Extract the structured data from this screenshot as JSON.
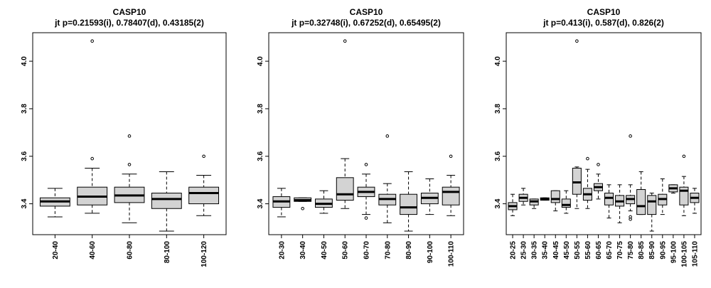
{
  "chart_data": [
    {
      "type": "box",
      "title": "CASP10",
      "subtitle": "jt p=0.21593(i), 0.78407(d), 0.43185(2)",
      "ylim": [
        3.27,
        4.12
      ],
      "yticks": [
        "3.4",
        "3.6",
        "3.8",
        "4.0"
      ],
      "categories": [
        "20-40",
        "40-60",
        "60-80",
        "80-100",
        "100-120"
      ],
      "boxes": [
        {
          "min": 3.345,
          "q1": 3.39,
          "median": 3.41,
          "q3": 3.425,
          "max": 3.465,
          "outliers": []
        },
        {
          "min": 3.36,
          "q1": 3.395,
          "median": 3.43,
          "q3": 3.47,
          "max": 3.55,
          "outliers": [
            3.59,
            4.085
          ]
        },
        {
          "min": 3.32,
          "q1": 3.405,
          "median": 3.435,
          "q3": 3.47,
          "max": 3.525,
          "outliers": [
            3.565,
            3.685
          ]
        },
        {
          "min": 3.285,
          "q1": 3.38,
          "median": 3.42,
          "q3": 3.445,
          "max": 3.535,
          "outliers": []
        },
        {
          "min": 3.35,
          "q1": 3.4,
          "median": 3.445,
          "q3": 3.47,
          "max": 3.52,
          "outliers": [
            3.6
          ]
        }
      ]
    },
    {
      "type": "box",
      "title": "CASP10",
      "subtitle": "jt p=0.32748(i), 0.67252(d), 0.65495(2)",
      "ylim": [
        3.27,
        4.12
      ],
      "yticks": [
        "3.4",
        "3.6",
        "3.8",
        "4.0"
      ],
      "categories": [
        "20-30",
        "30-40",
        "40-50",
        "50-60",
        "60-70",
        "70-80",
        "80-90",
        "90-100",
        "100-110"
      ],
      "boxes": [
        {
          "min": 3.345,
          "q1": 3.385,
          "median": 3.41,
          "q3": 3.43,
          "max": 3.465,
          "outliers": []
        },
        {
          "min": 3.41,
          "q1": 3.41,
          "median": 3.415,
          "q3": 3.425,
          "max": 3.425,
          "outliers": [
            3.38
          ]
        },
        {
          "min": 3.36,
          "q1": 3.385,
          "median": 3.4,
          "q3": 3.42,
          "max": 3.455,
          "outliers": []
        },
        {
          "min": 3.38,
          "q1": 3.415,
          "median": 3.44,
          "q3": 3.51,
          "max": 3.59,
          "outliers": [
            4.085
          ]
        },
        {
          "min": 3.355,
          "q1": 3.43,
          "median": 3.45,
          "q3": 3.47,
          "max": 3.525,
          "outliers": [
            3.34,
            3.565
          ]
        },
        {
          "min": 3.32,
          "q1": 3.395,
          "median": 3.42,
          "q3": 3.44,
          "max": 3.485,
          "outliers": [
            3.685
          ]
        },
        {
          "min": 3.285,
          "q1": 3.355,
          "median": 3.385,
          "q3": 3.44,
          "max": 3.535,
          "outliers": []
        },
        {
          "min": 3.355,
          "q1": 3.4,
          "median": 3.425,
          "q3": 3.445,
          "max": 3.505,
          "outliers": []
        },
        {
          "min": 3.35,
          "q1": 3.395,
          "median": 3.45,
          "q3": 3.47,
          "max": 3.52,
          "outliers": [
            3.6
          ]
        }
      ]
    },
    {
      "type": "box",
      "title": "CASP10",
      "subtitle": "jt p=0.413(i), 0.587(d), 0.826(2)",
      "ylim": [
        3.27,
        4.12
      ],
      "yticks": [
        "3.4",
        "3.6",
        "3.8",
        "4.0"
      ],
      "categories": [
        "20-25",
        "25-30",
        "30-35",
        "35-40",
        "40-45",
        "45-50",
        "50-55",
        "55-60",
        "60-65",
        "65-70",
        "70-75",
        "75-80",
        "80-85",
        "85-90",
        "90-95",
        "95-100",
        "100-105",
        "105-110"
      ],
      "boxes": [
        {
          "min": 3.35,
          "q1": 3.375,
          "median": 3.39,
          "q3": 3.405,
          "max": 3.44,
          "outliers": []
        },
        {
          "min": 3.395,
          "q1": 3.41,
          "median": 3.425,
          "q3": 3.44,
          "max": 3.465,
          "outliers": []
        },
        {
          "min": 3.38,
          "q1": 3.395,
          "median": 3.41,
          "q3": 3.42,
          "max": 3.42,
          "outliers": []
        },
        {
          "min": 3.415,
          "q1": 3.415,
          "median": 3.42,
          "q3": 3.425,
          "max": 3.425,
          "outliers": []
        },
        {
          "min": 3.37,
          "q1": 3.405,
          "median": 3.42,
          "q3": 3.455,
          "max": 3.455,
          "outliers": []
        },
        {
          "min": 3.36,
          "q1": 3.385,
          "median": 3.395,
          "q3": 3.42,
          "max": 3.455,
          "outliers": []
        },
        {
          "min": 3.38,
          "q1": 3.44,
          "median": 3.49,
          "q3": 3.55,
          "max": 3.555,
          "outliers": [
            4.085
          ]
        },
        {
          "min": 3.38,
          "q1": 3.415,
          "median": 3.44,
          "q3": 3.465,
          "max": 3.545,
          "outliers": [
            3.59
          ]
        },
        {
          "min": 3.42,
          "q1": 3.455,
          "median": 3.47,
          "q3": 3.485,
          "max": 3.525,
          "outliers": [
            3.565
          ]
        },
        {
          "min": 3.34,
          "q1": 3.395,
          "median": 3.425,
          "q3": 3.445,
          "max": 3.48,
          "outliers": []
        },
        {
          "min": 3.32,
          "q1": 3.39,
          "median": 3.41,
          "q3": 3.435,
          "max": 3.48,
          "outliers": []
        },
        {
          "min": 3.37,
          "q1": 3.4,
          "median": 3.42,
          "q3": 3.435,
          "max": 3.48,
          "outliers": [
            3.335,
            3.345,
            3.685
          ]
        },
        {
          "min": 3.355,
          "q1": 3.355,
          "median": 3.39,
          "q3": 3.46,
          "max": 3.535,
          "outliers": []
        },
        {
          "min": 3.285,
          "q1": 3.355,
          "median": 3.41,
          "q3": 3.435,
          "max": 3.445,
          "outliers": []
        },
        {
          "min": 3.355,
          "q1": 3.395,
          "median": 3.42,
          "q3": 3.44,
          "max": 3.505,
          "outliers": []
        },
        {
          "min": 3.445,
          "q1": 3.45,
          "median": 3.465,
          "q3": 3.48,
          "max": 3.48,
          "outliers": []
        },
        {
          "min": 3.35,
          "q1": 3.395,
          "median": 3.455,
          "q3": 3.47,
          "max": 3.515,
          "outliers": [
            3.6
          ]
        },
        {
          "min": 3.36,
          "q1": 3.405,
          "median": 3.425,
          "q3": 3.445,
          "max": 3.465,
          "outliers": []
        }
      ]
    }
  ]
}
